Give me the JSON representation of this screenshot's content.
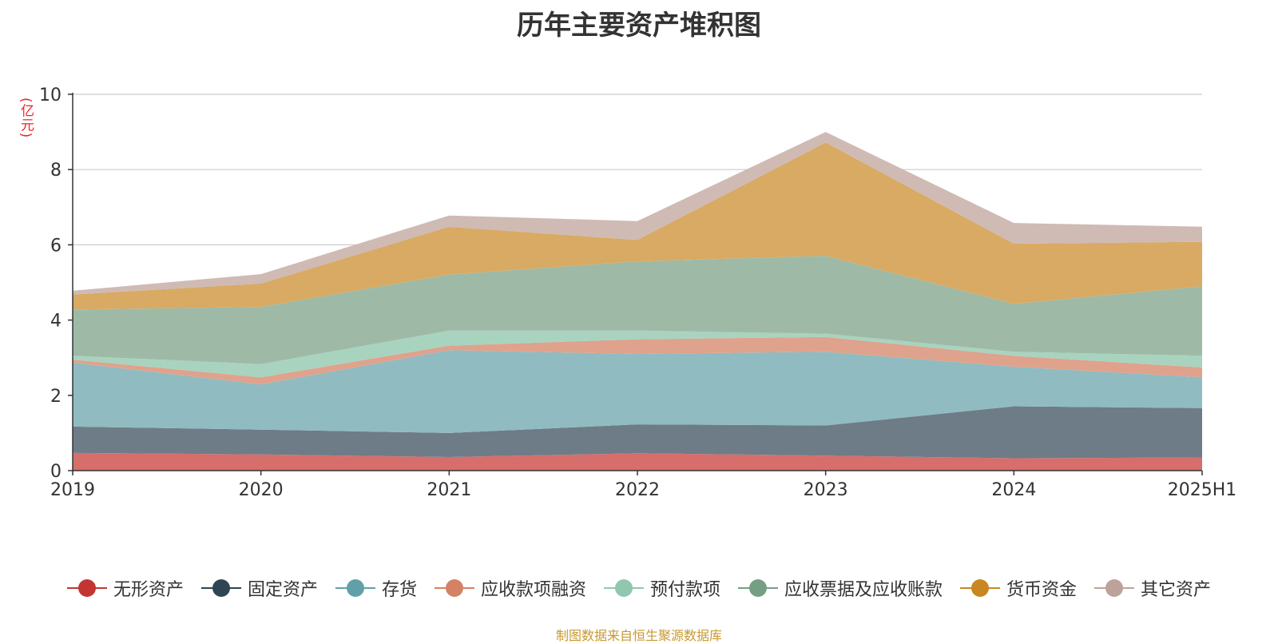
{
  "title": "历年主要资产堆积图",
  "unit": "(亿元)",
  "source": "制图数据来自恒生聚源数据库",
  "chart_data": {
    "type": "area",
    "stacked": true,
    "categories": [
      "2019",
      "2020",
      "2021",
      "2022",
      "2023",
      "2024",
      "2025H1"
    ],
    "ylim": [
      0,
      10
    ],
    "yticks": [
      "0",
      "2",
      "4",
      "6",
      "8",
      "10"
    ],
    "grid": true,
    "legend_position": "bottom",
    "series": [
      {
        "name": "无形资产",
        "color": "#c23531",
        "area_color": "#d66e6c",
        "values": [
          0.47,
          0.43,
          0.36,
          0.46,
          0.4,
          0.33,
          0.35
        ]
      },
      {
        "name": "固定资产",
        "color": "#2f4554",
        "area_color": "#6e7c87",
        "values": [
          0.7,
          0.66,
          0.64,
          0.77,
          0.8,
          1.38,
          1.31
        ]
      },
      {
        "name": "存货",
        "color": "#61a0a8",
        "area_color": "#90bbc1",
        "values": [
          1.7,
          1.2,
          2.2,
          1.87,
          1.96,
          1.05,
          0.82
        ]
      },
      {
        "name": "应收款项融资",
        "color": "#d48265",
        "area_color": "#dfa28c",
        "values": [
          0.08,
          0.19,
          0.12,
          0.39,
          0.39,
          0.29,
          0.26
        ]
      },
      {
        "name": "预付款项",
        "color": "#91c7ae",
        "area_color": "#a8d3bf",
        "values": [
          0.1,
          0.35,
          0.4,
          0.23,
          0.09,
          0.11,
          0.31
        ]
      },
      {
        "name": "应收票据及应收账款",
        "color": "#749f83",
        "area_color": "#9ebaa6",
        "values": [
          1.23,
          1.52,
          1.49,
          1.84,
          2.07,
          1.27,
          1.85
        ]
      },
      {
        "name": "货币资金",
        "color": "#ca8622",
        "area_color": "#d8aa63",
        "values": [
          0.4,
          0.62,
          1.27,
          0.57,
          3.01,
          1.6,
          1.18
        ]
      },
      {
        "name": "其它资产",
        "color": "#bda29a",
        "area_color": "#cfbab4",
        "values": [
          0.1,
          0.25,
          0.3,
          0.5,
          0.28,
          0.55,
          0.4
        ]
      }
    ]
  }
}
